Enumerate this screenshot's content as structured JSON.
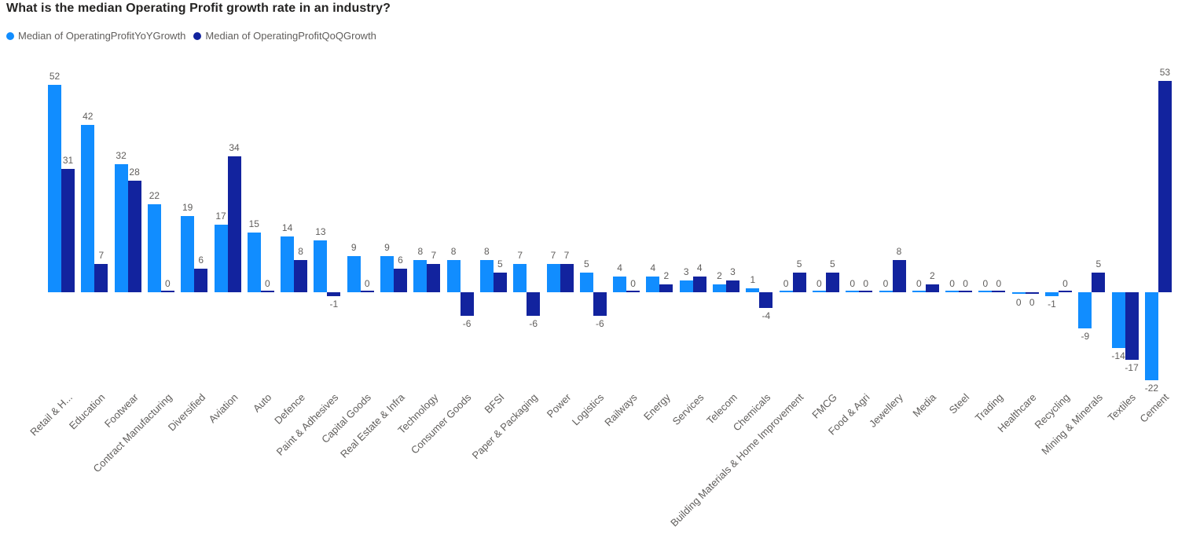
{
  "chart_data": {
    "type": "bar",
    "title": "What is the median Operating Profit growth rate in an industry?",
    "legend_position": "top-left",
    "grid": false,
    "x_axis_line": false,
    "y_axis_labels": false,
    "value_labels": true,
    "category_label_rotation_deg": -45,
    "ylim": [
      -22,
      53
    ],
    "series": [
      {
        "name": "Median of OperatingProfitYoYGrowth",
        "key": "yoy",
        "color": "#118DFF"
      },
      {
        "name": "Median of OperatingProfitQoQGrowth",
        "key": "qoq",
        "color": "#12239E"
      }
    ],
    "categories": [
      {
        "label": "Retail & H...",
        "yoy": 52,
        "qoq": 31
      },
      {
        "label": "Education",
        "yoy": 42,
        "qoq": 7
      },
      {
        "label": "Footwear",
        "yoy": 32,
        "qoq": 28
      },
      {
        "label": "Contract Manufacturing",
        "yoy": 22,
        "qoq": 0
      },
      {
        "label": "Diversified",
        "yoy": 19,
        "qoq": 6
      },
      {
        "label": "Aviation",
        "yoy": 17,
        "qoq": 34
      },
      {
        "label": "Auto",
        "yoy": 15,
        "qoq": 0
      },
      {
        "label": "Defence",
        "yoy": 14,
        "qoq": 8
      },
      {
        "label": "Paint & Adhesives",
        "yoy": 13,
        "qoq": -1
      },
      {
        "label": "Capital Goods",
        "yoy": 9,
        "qoq": 0
      },
      {
        "label": "Real Estate & Infra",
        "yoy": 9,
        "qoq": 6
      },
      {
        "label": "Technology",
        "yoy": 8,
        "qoq": 7
      },
      {
        "label": "Consumer Goods",
        "yoy": 8,
        "qoq": -6
      },
      {
        "label": "BFSI",
        "yoy": 8,
        "qoq": 5
      },
      {
        "label": "Paper & Packaging",
        "yoy": 7,
        "qoq": -6
      },
      {
        "label": "Power",
        "yoy": 7,
        "qoq": 7
      },
      {
        "label": "Logistics",
        "yoy": 5,
        "qoq": -6
      },
      {
        "label": "Railways",
        "yoy": 4,
        "qoq": 0
      },
      {
        "label": "Energy",
        "yoy": 4,
        "qoq": 2
      },
      {
        "label": "Services",
        "yoy": 3,
        "qoq": 4
      },
      {
        "label": "Telecom",
        "yoy": 2,
        "qoq": 3
      },
      {
        "label": "Chemicals",
        "yoy": 1,
        "qoq": -4
      },
      {
        "label": "Building Materials & Home Improvement",
        "yoy": 0,
        "qoq": 5
      },
      {
        "label": "FMCG",
        "yoy": 0,
        "qoq": 5
      },
      {
        "label": "Food & Agri",
        "yoy": 0,
        "qoq": 0
      },
      {
        "label": "Jewellery",
        "yoy": 0,
        "qoq": 8
      },
      {
        "label": "Media",
        "yoy": 0,
        "qoq": 2
      },
      {
        "label": "Steel",
        "yoy": 0,
        "qoq": 0
      },
      {
        "label": "Trading",
        "yoy": 0,
        "qoq": 0
      },
      {
        "label": "Healthcare",
        "yoy": 0,
        "qoq": 0,
        "zero_labels_below": true
      },
      {
        "label": "Recycling",
        "yoy": -1,
        "qoq": 0
      },
      {
        "label": "Mining & Minerals",
        "yoy": -9,
        "qoq": 5
      },
      {
        "label": "Textiles",
        "yoy": -14,
        "qoq": -17
      },
      {
        "label": "Cement",
        "yoy": -22,
        "qoq": 53
      }
    ]
  },
  "colors": {
    "title": "#252423",
    "value_label": "#605E5C",
    "axis_label": "#605E5C",
    "background": "#ffffff"
  }
}
